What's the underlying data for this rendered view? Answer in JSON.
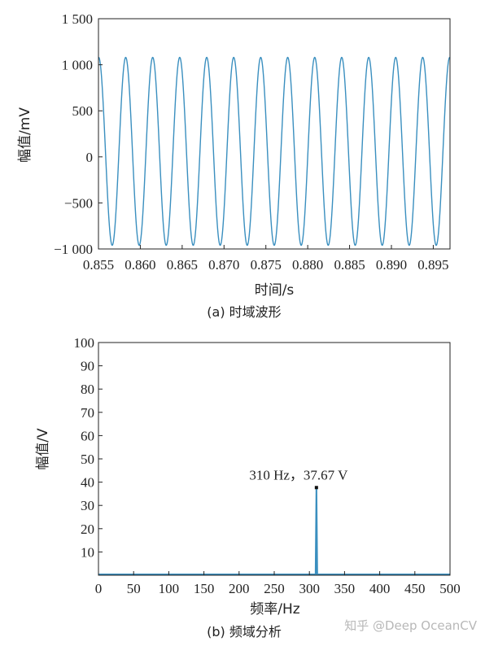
{
  "chart_data": [
    {
      "type": "line",
      "caption": "(a) 时域波形",
      "xlabel": "时间/s",
      "ylabel": "幅值/mV",
      "xlim": [
        0.855,
        0.897
      ],
      "ylim": [
        -1000,
        1500
      ],
      "xticks": [
        0.855,
        0.86,
        0.865,
        0.87,
        0.875,
        0.88,
        0.885,
        0.89,
        0.895
      ],
      "xtick_labels": [
        "0.855",
        "0.860",
        "0.865",
        "0.870",
        "0.875",
        "0.880",
        "0.885",
        "0.890",
        "0.895"
      ],
      "yticks": [
        1500,
        1000,
        500,
        0,
        -500,
        -1000
      ],
      "ytick_labels": [
        "1 500",
        "1 000",
        "500",
        "0",
        "−500",
        "−1 000"
      ],
      "series": [
        {
          "type": "sine",
          "frequency_hz": 310,
          "amplitude_mv": 1020,
          "offset_mv": 60,
          "phase_rad": 1.2,
          "color": "#3a8fbf"
        }
      ],
      "grid": false
    },
    {
      "type": "line",
      "caption": "(b) 频域分析",
      "xlabel": "频率/Hz",
      "ylabel": "幅值/V",
      "xlim": [
        0,
        500
      ],
      "ylim": [
        0,
        100
      ],
      "xticks": [
        0,
        50,
        100,
        150,
        200,
        250,
        300,
        350,
        400,
        450,
        500
      ],
      "yticks": [
        100,
        90,
        80,
        70,
        60,
        50,
        40,
        30,
        20,
        10
      ],
      "peak": {
        "x": 310,
        "y": 37.67
      },
      "annotation": "310 Hz，37.67 V",
      "color": "#3a8fbf",
      "grid": false
    }
  ],
  "watermark": "知乎 @Deep OceanCV"
}
